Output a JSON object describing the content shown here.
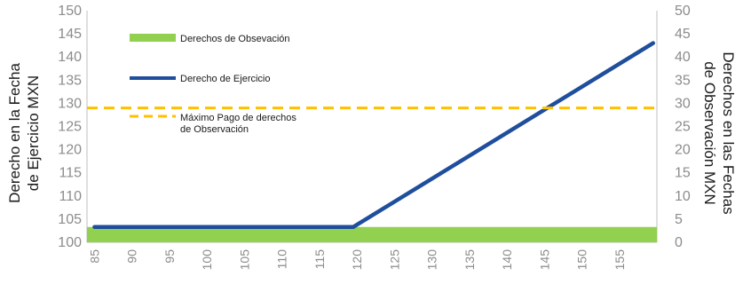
{
  "chart_data": {
    "type": "line",
    "x": [
      85,
      120,
      160
    ],
    "x_ticks": [
      "85",
      "90",
      "95",
      "100",
      "105",
      "110",
      "115",
      "120",
      "125",
      "130",
      "135",
      "140",
      "145",
      "150",
      "155"
    ],
    "xlim": [
      84,
      160
    ],
    "y_left": {
      "label_lines": [
        "Derecho en la  Fecha",
        "de Ejercicio  MXN"
      ],
      "ticks": [
        "100",
        "105",
        "110",
        "115",
        "120",
        "125",
        "130",
        "135",
        "140",
        "145",
        "150"
      ],
      "ylim": [
        100,
        150
      ]
    },
    "y_right": {
      "label_lines": [
        "Derechos en las Fechas",
        "de Observación MXN"
      ],
      "ticks": [
        "0",
        "5",
        "10",
        "15",
        "20",
        "25",
        "30",
        "35",
        "40",
        "45",
        "50"
      ],
      "ylim": [
        0,
        50
      ]
    },
    "series": [
      {
        "name": "Derechos de Obsevación",
        "kind": "area",
        "axis": "right",
        "color": "#92d050",
        "x": [
          84,
          160
        ],
        "values": [
          3.3,
          3.3
        ]
      },
      {
        "name": "Derecho de Ejercicio",
        "kind": "line",
        "axis": "left",
        "color": "#1f4e9c",
        "x": [
          85,
          119.5,
          159.5
        ],
        "values": [
          103.3,
          103.3,
          143
        ]
      },
      {
        "name": "Máximo Pago de derechos de Observación",
        "kind": "dashed-line",
        "axis": "right",
        "color": "#ffc000",
        "x": [
          84,
          160
        ],
        "values": [
          29,
          29
        ]
      }
    ],
    "legend_placement": "top-left inside plot",
    "grid": false
  }
}
